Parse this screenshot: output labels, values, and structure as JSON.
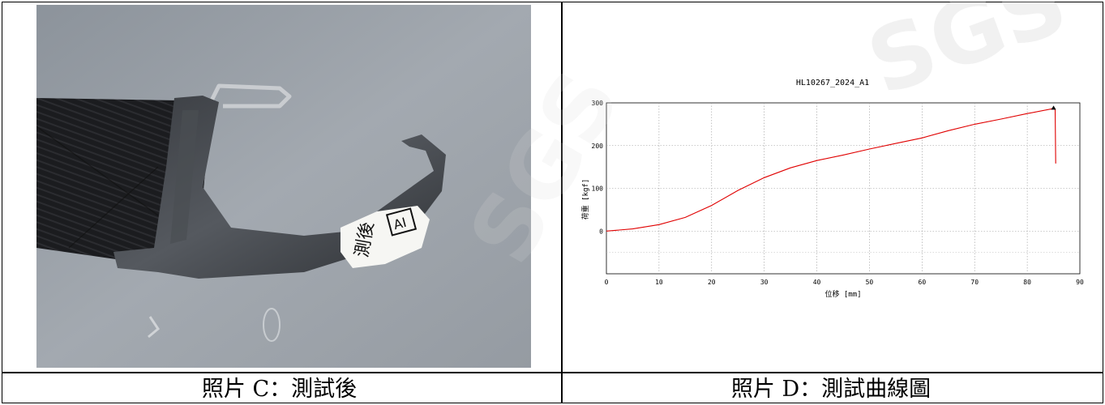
{
  "photo": {
    "label_tag_text": "AI",
    "label_handwriting": "測後"
  },
  "chart_data": {
    "type": "line",
    "title": "HL10267_2024_A1",
    "xlabel": "位移 [mm]",
    "ylabel": "荷重 [kgf]",
    "xlim": [
      0,
      90
    ],
    "ylim": [
      -100,
      300
    ],
    "xticks": [
      0,
      10,
      20,
      30,
      40,
      50,
      60,
      70,
      80,
      90
    ],
    "yticks": [
      0,
      100,
      200,
      300
    ],
    "grid": true,
    "series": [
      {
        "color": "#e00000",
        "x": [
          0,
          5,
          10,
          15,
          20,
          25,
          30,
          35,
          40,
          45,
          50,
          55,
          60,
          65,
          70,
          75,
          80,
          85,
          85.3,
          85.4
        ],
        "y": [
          0,
          5,
          15,
          32,
          60,
          95,
          125,
          148,
          165,
          178,
          192,
          205,
          218,
          235,
          250,
          262,
          275,
          287,
          285,
          158
        ]
      }
    ],
    "peak_marker": {
      "x": 85,
      "y": 288
    }
  },
  "captions": {
    "left": "照片 C：測試後",
    "right": "照片 D：測試曲線圖"
  },
  "watermark_text": "SGS"
}
